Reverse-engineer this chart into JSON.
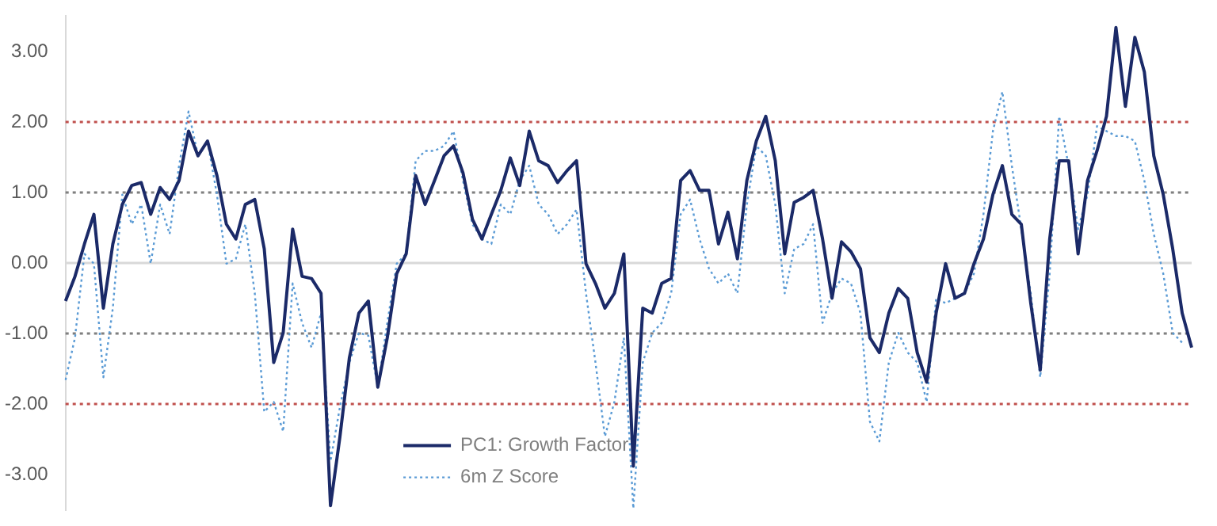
{
  "chart_data": {
    "type": "line",
    "categories": [
      null,
      null,
      null,
      null,
      null,
      null,
      null,
      null,
      null,
      null,
      null,
      null,
      null,
      null,
      null,
      null,
      null,
      null,
      null,
      null,
      null,
      null,
      null,
      null,
      null,
      null,
      null,
      null,
      null,
      null,
      null,
      null,
      null,
      null,
      null,
      null,
      null,
      null,
      null,
      null,
      null,
      null,
      null,
      null,
      null,
      null,
      null,
      null,
      null,
      null,
      null,
      null,
      null,
      null,
      null,
      null,
      null,
      null,
      null,
      null,
      null,
      null,
      null,
      null,
      null,
      null,
      null,
      null,
      null,
      null,
      null,
      null,
      null,
      null,
      null,
      null,
      null,
      null,
      null,
      null,
      null,
      null,
      null,
      null,
      null,
      null,
      null,
      null,
      null,
      null,
      null,
      null,
      null,
      null,
      null,
      null,
      null,
      null,
      null,
      null,
      null,
      null,
      null,
      null,
      null,
      null,
      null,
      null,
      null,
      null,
      null,
      null,
      null,
      null,
      null,
      null,
      null,
      null,
      null,
      null
    ],
    "series": [
      {
        "name": "PC1: Growth Factor",
        "color": "#1b2a68",
        "line_style": "solid",
        "values": [
          -0.54,
          -0.19,
          0.27,
          0.69,
          -0.64,
          0.27,
          0.83,
          1.1,
          1.14,
          0.69,
          1.07,
          0.9,
          1.17,
          1.87,
          1.52,
          1.73,
          1.24,
          0.55,
          0.34,
          0.83,
          0.9,
          0.2,
          -1.41,
          -0.99,
          0.48,
          -0.19,
          -0.22,
          -0.43,
          -3.44,
          -2.46,
          -1.34,
          -0.71,
          -0.54,
          -1.76,
          -1.06,
          -0.15,
          0.13,
          1.24,
          0.83,
          1.17,
          1.52,
          1.66,
          1.28,
          0.62,
          0.34,
          0.69,
          1.03,
          1.49,
          1.1,
          1.87,
          1.45,
          1.38,
          1.14,
          1.31,
          1.45,
          -0.01,
          -0.29,
          -0.64,
          -0.43,
          0.13,
          -2.88,
          -0.64,
          -0.71,
          -0.29,
          -0.22,
          1.17,
          1.31,
          1.03,
          1.03,
          0.27,
          0.72,
          0.06,
          1.17,
          1.73,
          2.08,
          1.45,
          0.13,
          0.86,
          0.93,
          1.03,
          0.34,
          -0.5,
          0.3,
          0.16,
          -0.08,
          -1.06,
          -1.27,
          -0.71,
          -0.36,
          -0.5,
          -1.27,
          -1.69,
          -0.71,
          -0.01,
          -0.5,
          -0.43,
          -0.01,
          0.34,
          0.97,
          1.38,
          0.69,
          0.55,
          -0.57,
          -1.52,
          0.34,
          1.45,
          1.45,
          0.13,
          1.17,
          1.59,
          2.08,
          3.34,
          2.22,
          3.2,
          2.71,
          1.52,
          0.97,
          0.2,
          -0.71,
          -1.2
        ]
      },
      {
        "name": "6m Z Score",
        "color": "#5b9bd5",
        "line_style": "dotted",
        "values": [
          -1.66,
          -1.06,
          0.13,
          -0.01,
          -1.62,
          -0.64,
          0.97,
          0.55,
          0.83,
          -0.01,
          0.83,
          0.41,
          1.38,
          2.15,
          1.52,
          1.73,
          0.97,
          -0.01,
          0.06,
          0.55,
          -0.43,
          -2.11,
          -1.97,
          -2.39,
          -0.29,
          -0.85,
          -1.2,
          -0.71,
          -2.81,
          -2.04,
          -1.41,
          -0.99,
          -1.03,
          -1.76,
          -0.85,
          -0.01,
          0.13,
          1.45,
          1.59,
          1.59,
          1.66,
          1.87,
          1.17,
          0.55,
          0.34,
          0.27,
          0.83,
          0.69,
          1.17,
          1.38,
          0.83,
          0.69,
          0.41,
          0.55,
          0.76,
          -0.43,
          -1.41,
          -2.46,
          -1.97,
          -1.06,
          -3.48,
          -1.41,
          -0.99,
          -0.85,
          -0.43,
          0.69,
          0.9,
          0.34,
          -0.08,
          -0.29,
          -0.15,
          -0.43,
          0.83,
          1.66,
          1.52,
          0.83,
          -0.43,
          0.2,
          0.27,
          0.55,
          -0.85,
          -0.43,
          -0.22,
          -0.29,
          -0.71,
          -2.25,
          -2.53,
          -1.41,
          -0.99,
          -1.27,
          -1.41,
          -1.97,
          -0.5,
          -0.57,
          -0.5,
          -0.43,
          -0.15,
          0.69,
          1.87,
          2.43,
          1.38,
          0.48,
          -0.43,
          -1.62,
          -0.15,
          2.08,
          1.38,
          0.48,
          0.97,
          1.94,
          1.87,
          1.8,
          1.8,
          1.73,
          1.17,
          0.41,
          -0.15,
          -0.99,
          -1.13,
          null
        ]
      }
    ],
    "ylim": [
      -3.5,
      3.5
    ],
    "yticks": [
      {
        "value": -3,
        "label": "-3.00"
      },
      {
        "value": -2,
        "label": "-2.00"
      },
      {
        "value": -1,
        "label": "-1.00"
      },
      {
        "value": 0,
        "label": "0.00"
      },
      {
        "value": 1,
        "label": "1.00"
      },
      {
        "value": 2,
        "label": "2.00"
      },
      {
        "value": 3,
        "label": "3.00"
      }
    ],
    "ref_lines": [
      {
        "axis": "y",
        "value": 2,
        "color": "#c0504d",
        "line_style": "dotted"
      },
      {
        "axis": "y",
        "value": 1,
        "color": "#7f7f7f",
        "line_style": "dotted"
      },
      {
        "axis": "y",
        "value": 0,
        "color": "#d9d9d9",
        "line_style": "solid"
      },
      {
        "axis": "y",
        "value": -1,
        "color": "#7f7f7f",
        "line_style": "dotted"
      },
      {
        "axis": "y",
        "value": -2,
        "color": "#c0504d",
        "line_style": "dotted"
      }
    ],
    "tick_labels": "y",
    "grid": false,
    "marker": "none",
    "legend": "bottom"
  }
}
